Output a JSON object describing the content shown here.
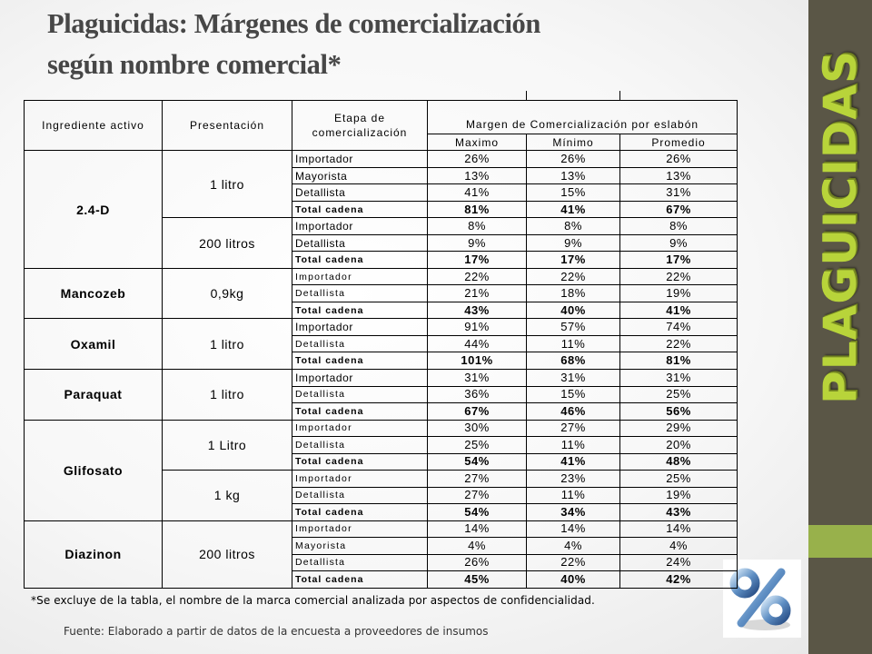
{
  "slide": {
    "title_line1": "Plaguicidas: Márgenes de comercialización",
    "title_line2": "según nombre comercial*",
    "sidebar_word": "PLAGUICIDAS",
    "icon": "percent-icon",
    "footnote": "*Se excluye de la tabla, el nombre de la marca comercial analizada por aspectos de  confidencialidad.",
    "source": "Fuente: Elaborado a partir de datos de la encuesta a proveedores de insumos",
    "colors": {
      "sidebar": "#5a5646",
      "accent": "#98b14b",
      "title": "#474747",
      "sidebar_text": "#b8d43a"
    }
  },
  "table": {
    "headers": {
      "ingrediente": "Ingrediente activo",
      "presentacion": "Presentación",
      "etapa_line1": "Etapa de",
      "etapa_line2": "comercialización",
      "margen": "Margen de Comercialización por eslabón",
      "maximo": "Maximo",
      "minimo": "Mínimo",
      "promedio": "Promedio"
    },
    "rows": [
      {
        "ing": "2.4-D",
        "pres": "1 litro",
        "etapa": "Importador",
        "max": "26%",
        "min": "26%",
        "prom": "26%"
      },
      {
        "etapa": "Mayorista",
        "max": "13%",
        "min": "13%",
        "prom": "13%"
      },
      {
        "etapa": "Detallista",
        "max": "41%",
        "min": "15%",
        "prom": "31%"
      },
      {
        "etapa": "Total cadena",
        "max": "81%",
        "min": "41%",
        "prom": "67%"
      },
      {
        "pres": "200 litros",
        "etapa": "Importador",
        "max": "8%",
        "min": "8%",
        "prom": "8%"
      },
      {
        "etapa": "Detallista",
        "max": "9%",
        "min": "9%",
        "prom": "9%"
      },
      {
        "etapa": "Total cadena",
        "max": "17%",
        "min": "17%",
        "prom": "17%"
      },
      {
        "ing": "Mancozeb",
        "pres": "0,9kg",
        "etapa": "Importador",
        "max": "22%",
        "min": "22%",
        "prom": "22%"
      },
      {
        "etapa": "Detallista",
        "max": "21%",
        "min": "18%",
        "prom": "19%"
      },
      {
        "etapa": "Total cadena",
        "max": "43%",
        "min": "40%",
        "prom": "41%"
      },
      {
        "ing": "Oxamil",
        "pres": "1 litro",
        "etapa": "Importador",
        "max": "91%",
        "min": "57%",
        "prom": "74%"
      },
      {
        "etapa": "Detallista",
        "max": "44%",
        "min": "11%",
        "prom": "22%"
      },
      {
        "etapa": "Total cadena",
        "max": "101%",
        "min": "68%",
        "prom": "81%"
      },
      {
        "ing": "Paraquat",
        "pres": "1 litro",
        "etapa": "Importador",
        "max": "31%",
        "min": "31%",
        "prom": "31%"
      },
      {
        "etapa": "Detallista",
        "max": "36%",
        "min": "15%",
        "prom": "25%"
      },
      {
        "etapa": "Total cadena",
        "max": "67%",
        "min": "46%",
        "prom": "56%"
      },
      {
        "ing": "Glifosato",
        "pres": "1 Litro",
        "etapa": "Importador",
        "max": "30%",
        "min": "27%",
        "prom": "29%"
      },
      {
        "etapa": "Detallista",
        "max": "25%",
        "min": "11%",
        "prom": "20%"
      },
      {
        "etapa": "Total cadena",
        "max": "54%",
        "min": "41%",
        "prom": "48%"
      },
      {
        "pres": "1 kg",
        "etapa": "Importador",
        "max": "27%",
        "min": "23%",
        "prom": "25%"
      },
      {
        "etapa": "Detallista",
        "max": "27%",
        "min": "11%",
        "prom": "19%"
      },
      {
        "etapa": "Total cadena",
        "max": "54%",
        "min": "34%",
        "prom": "43%"
      },
      {
        "ing": "Diazinon",
        "pres": "200 litros",
        "etapa": "Importador",
        "max": "14%",
        "min": "14%",
        "prom": "14%"
      },
      {
        "etapa": "Mayorista",
        "max": "4%",
        "min": "4%",
        "prom": "4%"
      },
      {
        "etapa": "Detallista",
        "max": "26%",
        "min": "22%",
        "prom": "24%"
      },
      {
        "etapa": "Total cadena",
        "max": "45%",
        "min": "40%",
        "prom": "42%"
      }
    ]
  }
}
